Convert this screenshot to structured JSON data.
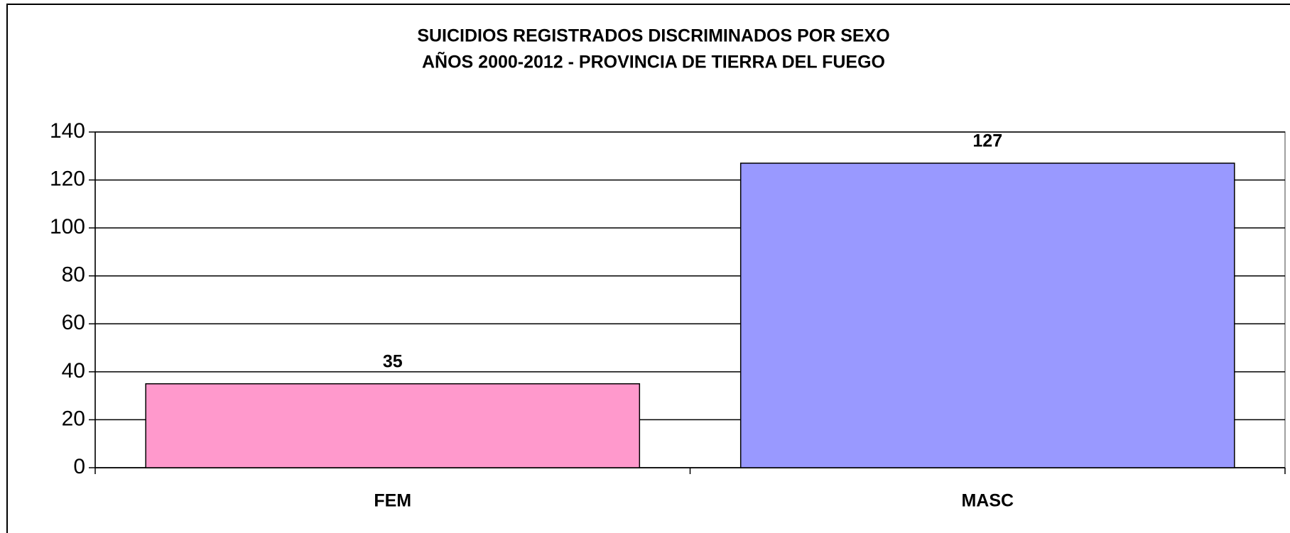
{
  "chart_data": {
    "type": "bar",
    "title": "SUICIDIOS REGISTRADOS DISCRIMINADOS POR SEXO",
    "subtitle": "AÑOS 2000-2012 - PROVINCIA DE TIERRA DEL FUEGO",
    "categories": [
      "FEM",
      "MASC"
    ],
    "values": [
      35,
      127
    ],
    "colors": [
      "#ff99cc",
      "#9999ff"
    ],
    "ylim": [
      0,
      140
    ],
    "yticks": [
      0,
      20,
      40,
      60,
      80,
      100,
      120,
      140
    ],
    "grid": true
  }
}
